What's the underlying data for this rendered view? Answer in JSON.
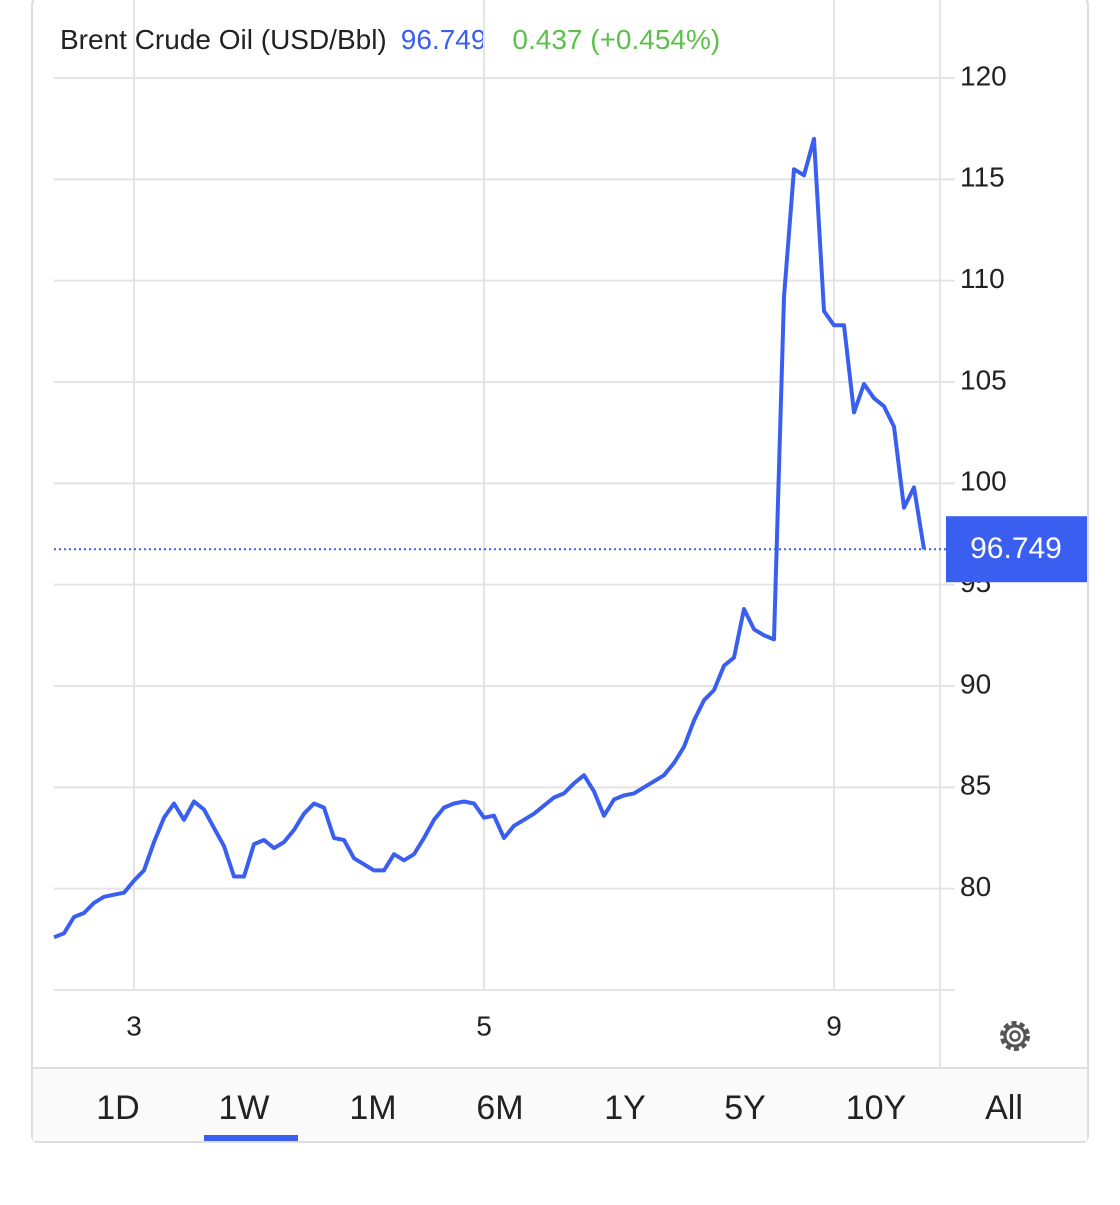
{
  "chart_data": {
    "type": "line",
    "title": "Brent Crude Oil (USD/Bbl)",
    "price": 96.749,
    "change": "0.437 (+0.454%)",
    "series": [
      {
        "name": "Brent Crude Oil (USD/Bbl)",
        "color": "#3a5ff0",
        "values": [
          77.6,
          77.8,
          78.6,
          78.8,
          79.3,
          79.6,
          79.7,
          79.8,
          80.4,
          80.9,
          82.3,
          83.5,
          84.2,
          83.4,
          84.3,
          83.9,
          83.0,
          82.1,
          80.6,
          80.6,
          82.2,
          82.4,
          82.0,
          82.3,
          82.9,
          83.7,
          84.2,
          84.0,
          82.5,
          82.4,
          81.5,
          81.2,
          80.9,
          80.9,
          81.7,
          81.4,
          81.7,
          82.5,
          83.4,
          84.0,
          84.2,
          84.3,
          84.2,
          83.5,
          83.6,
          82.5,
          83.1,
          83.4,
          83.7,
          84.1,
          84.5,
          84.7,
          85.2,
          85.6,
          84.8,
          83.6,
          84.4,
          84.6,
          84.7,
          85.0,
          85.3,
          85.6,
          86.2,
          87.0,
          88.3,
          89.3,
          89.8,
          91.0,
          91.4,
          93.8,
          92.8,
          92.5,
          92.3,
          109.2,
          115.5,
          115.2,
          117.0,
          108.5,
          107.8,
          107.8,
          103.5,
          104.9,
          104.2,
          103.8,
          102.8,
          98.8,
          99.8,
          96.749
        ]
      }
    ],
    "xlim": [
      0,
      88.6
    ],
    "xticks": [
      {
        "value": 8,
        "label": "3"
      },
      {
        "value": 43,
        "label": "5"
      },
      {
        "value": 78,
        "label": "9"
      }
    ],
    "ylim": [
      75,
      120
    ],
    "yticks": [
      80,
      85,
      90,
      95,
      100,
      105,
      110,
      115,
      120
    ],
    "grid": true,
    "tabs": [
      "1D",
      "1W",
      "1M",
      "6M",
      "1Y",
      "5Y",
      "10Y",
      "All"
    ],
    "active_tab": 1
  }
}
